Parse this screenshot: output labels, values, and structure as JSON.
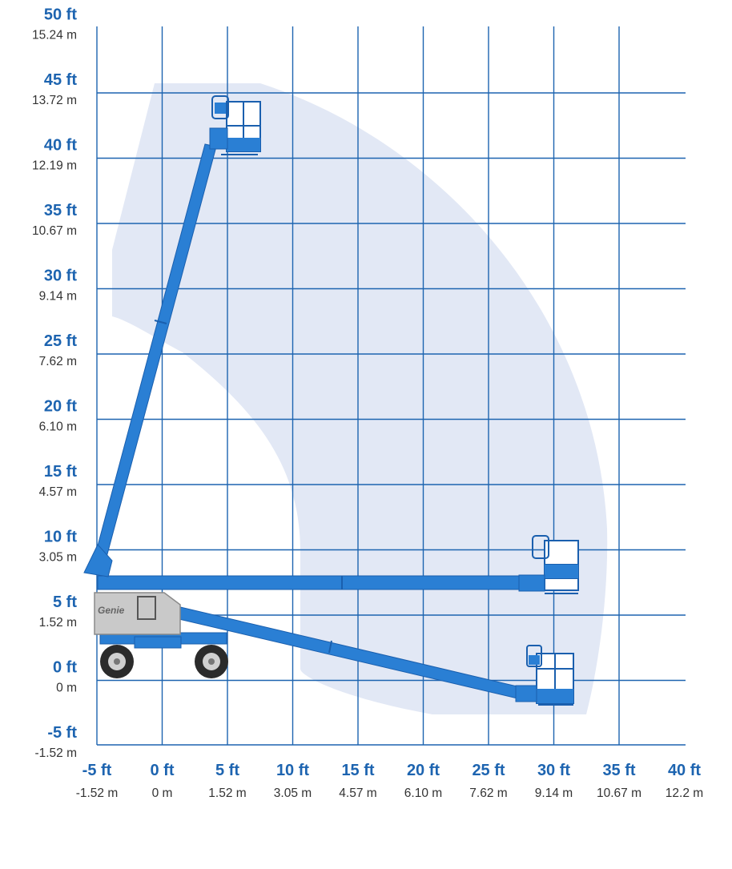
{
  "y_axis": {
    "ticks": [
      {
        "ft": "50 ft",
        "m": "15.24 m",
        "value": 50
      },
      {
        "ft": "45 ft",
        "m": "13.72 m",
        "value": 45
      },
      {
        "ft": "40 ft",
        "m": "12.19 m",
        "value": 40
      },
      {
        "ft": "35 ft",
        "m": "10.67 m",
        "value": 35
      },
      {
        "ft": "30 ft",
        "m": "9.14 m",
        "value": 30
      },
      {
        "ft": "25 ft",
        "m": "7.62 m",
        "value": 25
      },
      {
        "ft": "20 ft",
        "m": "6.10 m",
        "value": 20
      },
      {
        "ft": "15 ft",
        "m": "4.57 m",
        "value": 15
      },
      {
        "ft": "10 ft",
        "m": "3.05 m",
        "value": 10
      },
      {
        "ft": "5 ft",
        "m": "1.52 m",
        "value": 5
      },
      {
        "ft": "0 ft",
        "m": "0 m",
        "value": 0
      },
      {
        "ft": "-5 ft",
        "m": "-1.52 m",
        "value": -5
      }
    ]
  },
  "x_axis": {
    "ticks": [
      {
        "ft": "-5 ft",
        "m": "-1.52 m",
        "value": -5
      },
      {
        "ft": "0 ft",
        "m": "0 m",
        "value": 0
      },
      {
        "ft": "5 ft",
        "m": "1.52 m",
        "value": 5
      },
      {
        "ft": "10 ft",
        "m": "3.05 m",
        "value": 10
      },
      {
        "ft": "15 ft",
        "m": "4.57 m",
        "value": 15
      },
      {
        "ft": "20 ft",
        "m": "6.10 m",
        "value": 20
      },
      {
        "ft": "25 ft",
        "m": "7.62 m",
        "value": 25
      },
      {
        "ft": "30 ft",
        "m": "9.14 m",
        "value": 30
      },
      {
        "ft": "35 ft",
        "m": "10.67 m",
        "value": 35
      },
      {
        "ft": "40 ft",
        "m": "12.2 m",
        "value": 40
      }
    ]
  },
  "machine": {
    "brand": "Genie"
  },
  "colors": {
    "grid": "#1d64b0",
    "envelope": "#e2e8f5",
    "boom": "#2a7fd4",
    "boom_dark": "#1a5fae",
    "chassis": "#c9c9c9"
  }
}
